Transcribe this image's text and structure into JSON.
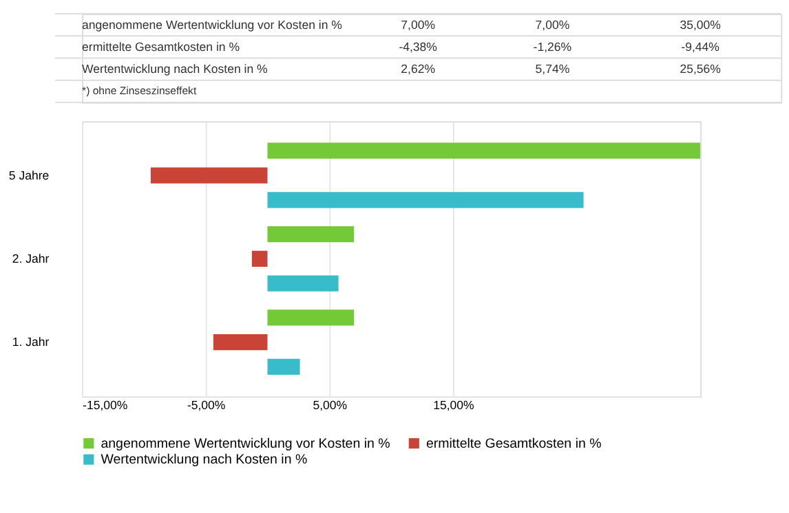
{
  "chart_data": {
    "type": "bar",
    "orientation": "horizontal",
    "categories": [
      "5 Jahre",
      "2. Jahr",
      "1. Jahr"
    ],
    "series": [
      {
        "name": "angenommene Wertentwicklung vor Kosten in %",
        "color": "#74c936",
        "values": [
          35.0,
          7.0,
          7.0
        ]
      },
      {
        "name": "ermittelte Gesamtkosten in %",
        "color": "#c94436",
        "values": [
          -9.44,
          -1.26,
          -4.38
        ]
      },
      {
        "name": "Wertentwicklung nach Kosten in %",
        "color": "#38bcc9",
        "values": [
          25.56,
          5.74,
          2.62
        ]
      }
    ],
    "xlim": [
      -15,
      35
    ],
    "xticks": [
      {
        "value": -15,
        "label": "-15,00%"
      },
      {
        "value": -5,
        "label": "-5,00%"
      },
      {
        "value": 5,
        "label": "5,00%"
      },
      {
        "value": 15,
        "label": "15,00%"
      }
    ],
    "grid": "x",
    "legend": "bottom",
    "annotations": [
      "angenommene Wertentwicklung vor Kosten in %",
      "7,00%",
      "7,00%",
      "35,00%",
      "ermittelte Gesamtkosten in %",
      "-4,38%",
      "-1,26%",
      "-9,44%",
      "Wertentwicklung nach Kosten in %",
      "2,62%",
      "5,74%",
      "25,56%",
      "*) ohne Zinseszinseffekt"
    ]
  }
}
